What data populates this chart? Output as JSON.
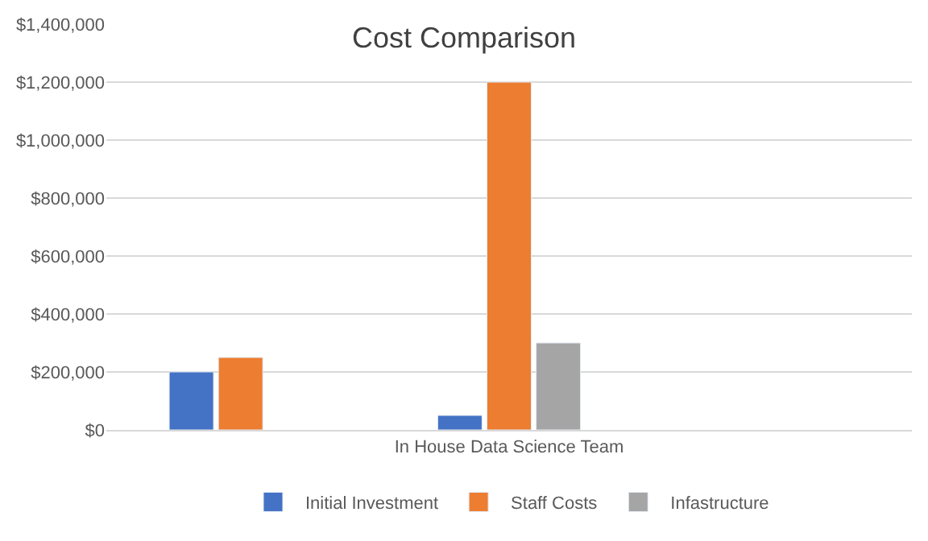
{
  "chart_data": {
    "type": "bar",
    "title": "Cost Comparison",
    "categories": [
      null,
      "In House Data Science Team",
      null
    ],
    "series": [
      {
        "name": "Initial Investment",
        "color": "#4472c4",
        "values": [
          200000,
          50000,
          null
        ]
      },
      {
        "name": "Staff Costs",
        "color": "#ed7d31",
        "values": [
          250000,
          1200000,
          null
        ]
      },
      {
        "name": "Infastructure",
        "color": "#a5a5a5",
        "values": [
          null,
          300000,
          null
        ]
      }
    ],
    "ylim": [
      0,
      1400000
    ],
    "yticks": [
      {
        "value": 0,
        "label": "$0"
      },
      {
        "value": 200000,
        "label": "$200,000"
      },
      {
        "value": 400000,
        "label": "$400,000"
      },
      {
        "value": 600000,
        "label": "$600,000"
      },
      {
        "value": 800000,
        "label": "$800,000"
      },
      {
        "value": 1000000,
        "label": "$1,000,000"
      },
      {
        "value": 1200000,
        "label": "$1,200,000"
      },
      {
        "value": 1400000,
        "label": "$1,400,000"
      }
    ],
    "grid": "y",
    "legend": "bottom"
  }
}
